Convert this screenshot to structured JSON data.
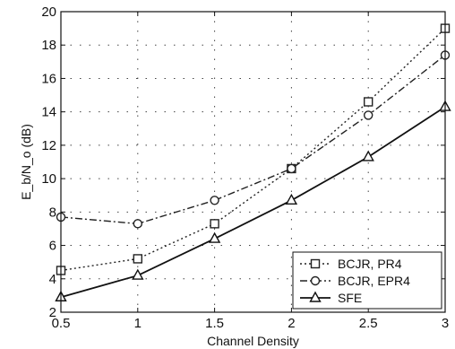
{
  "chart_data": {
    "type": "line",
    "xlabel": "Channel Density",
    "ylabel": "E_b/N_o (dB)",
    "xlim": [
      0.5,
      3
    ],
    "ylim": [
      2,
      20
    ],
    "x_ticks": [
      "0.5",
      "1",
      "1.5",
      "2",
      "2.5",
      "3"
    ],
    "y_ticks": [
      "2",
      "4",
      "6",
      "8",
      "10",
      "12",
      "14",
      "16",
      "18",
      "20"
    ],
    "grid": true,
    "legend_position": "bottom-right",
    "x": [
      0.5,
      1,
      1.5,
      2,
      2.5,
      3
    ],
    "series": [
      {
        "name": "BCJR, PR4",
        "values": [
          4.5,
          5.2,
          7.3,
          10.6,
          14.6,
          19.0
        ],
        "marker": "square",
        "line": "dotted",
        "color": "#222222"
      },
      {
        "name": "BCJR, EPR4",
        "values": [
          7.7,
          7.3,
          8.7,
          10.6,
          13.8,
          17.4
        ],
        "marker": "circle",
        "line": "dashdot",
        "color": "#222222"
      },
      {
        "name": "SFE",
        "values": [
          2.9,
          4.2,
          6.4,
          8.7,
          11.3,
          14.3
        ],
        "marker": "triangle",
        "line": "solid",
        "color": "#111111"
      }
    ]
  }
}
